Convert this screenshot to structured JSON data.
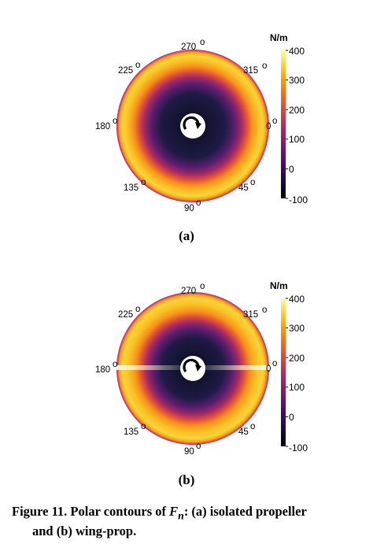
{
  "figure": {
    "panels": [
      {
        "tag": "(a)",
        "unit": "N/m",
        "angles": {
          "a270": "270",
          "a315": "315",
          "a0": "0",
          "a45": "45",
          "a90": "90",
          "a135": "135",
          "a180": "180",
          "a225": "225"
        },
        "colorbar_ticks": [
          "400",
          "300",
          "200",
          "100",
          "0",
          "-100"
        ],
        "colorbar_values": [
          400,
          300,
          200,
          100,
          0,
          -100
        ],
        "wing_streak": false
      },
      {
        "tag": "(b)",
        "unit": "N/m",
        "angles": {
          "a270": "270",
          "a315": "315",
          "a0": "0",
          "a45": "45",
          "a90": "90",
          "a135": "135",
          "a180": "180",
          "a225": "225"
        },
        "colorbar_ticks": [
          "400",
          "300",
          "200",
          "100",
          "0",
          "-100"
        ],
        "colorbar_values": [
          400,
          300,
          200,
          100,
          0,
          -100
        ],
        "wing_streak": true
      }
    ],
    "colormap": [
      "#000004",
      "#1b0c41",
      "#4a0c6b",
      "#781c6d",
      "#a52c60",
      "#cf4446",
      "#ed6925",
      "#fb9b06",
      "#f7d13d",
      "#fcffa4"
    ],
    "caption_line1_prefix": "Figure 11. Polar contours of ",
    "caption_symbol": "F",
    "caption_subscript": "n",
    "caption_line1_suffix": ": (a) isolated propeller",
    "caption_line2": "and (b) wing-prop."
  }
}
